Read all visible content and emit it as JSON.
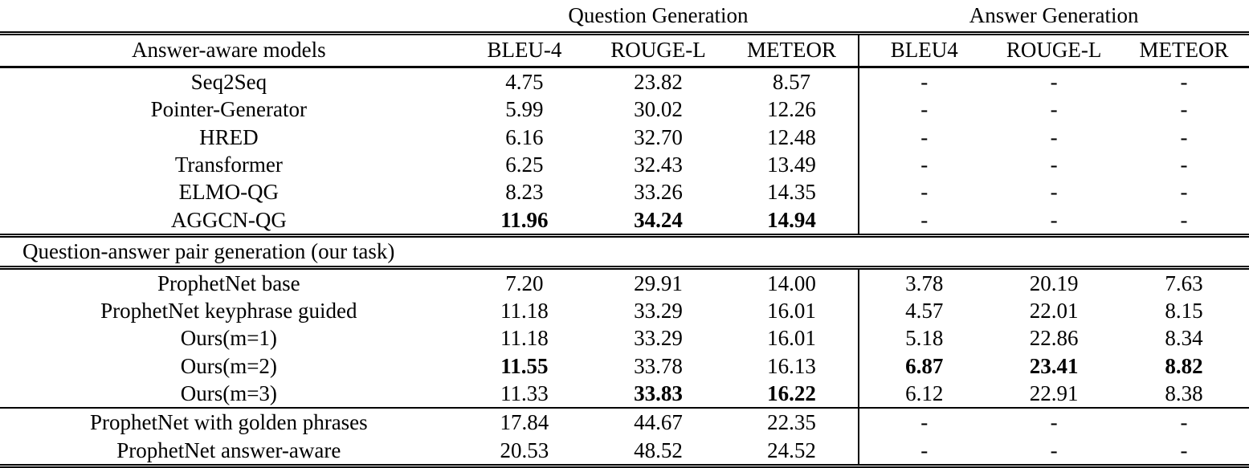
{
  "table": {
    "groups": [
      {
        "label": "Question Generation",
        "span": 3
      },
      {
        "label": "Answer Generation",
        "span": 3
      }
    ],
    "columns": [
      "Answer-aware models",
      "BLEU-4",
      "ROUGE-L",
      "METEOR",
      "BLEU4",
      "ROUGE-L",
      "METEOR"
    ],
    "sections": [
      {
        "title": null,
        "rows": [
          {
            "model": "Seq2Seq",
            "cells": [
              "4.75",
              "23.82",
              "8.57",
              "-",
              "-",
              "-"
            ],
            "bold": []
          },
          {
            "model": "Pointer-Generator",
            "cells": [
              "5.99",
              "30.02",
              "12.26",
              "-",
              "-",
              "-"
            ],
            "bold": []
          },
          {
            "model": "HRED",
            "cells": [
              "6.16",
              "32.70",
              "12.48",
              "-",
              "-",
              "-"
            ],
            "bold": []
          },
          {
            "model": "Transformer",
            "cells": [
              "6.25",
              "32.43",
              "13.49",
              "-",
              "-",
              "-"
            ],
            "bold": []
          },
          {
            "model": "ELMO-QG",
            "cells": [
              "8.23",
              "33.26",
              "14.35",
              "-",
              "-",
              "-"
            ],
            "bold": []
          },
          {
            "model": "AGGCN-QG",
            "cells": [
              "11.96",
              "34.24",
              "14.94",
              "-",
              "-",
              "-"
            ],
            "bold": [
              0,
              1,
              2
            ]
          }
        ]
      },
      {
        "title": "Question-answer pair generation (our task)",
        "rows": [
          {
            "model": "ProphetNet base",
            "cells": [
              "7.20",
              "29.91",
              "14.00",
              "3.78",
              "20.19",
              "7.63"
            ],
            "bold": []
          },
          {
            "model": "ProphetNet keyphrase guided",
            "cells": [
              "11.18",
              "33.29",
              "16.01",
              "4.57",
              "22.01",
              "8.15"
            ],
            "bold": []
          },
          {
            "model": "Ours(m=1)",
            "cells": [
              "11.18",
              "33.29",
              "16.01",
              "5.18",
              "22.86",
              "8.34"
            ],
            "bold": []
          },
          {
            "model": "Ours(m=2)",
            "cells": [
              "11.55",
              "33.78",
              "16.13",
              "6.87",
              "23.41",
              "8.82"
            ],
            "bold": [
              0,
              3,
              4,
              5
            ]
          },
          {
            "model": "Ours(m=3)",
            "cells": [
              "11.33",
              "33.83",
              "16.22",
              "6.12",
              "22.91",
              "8.38"
            ],
            "bold": [
              1,
              2
            ]
          }
        ]
      },
      {
        "title": null,
        "rows": [
          {
            "model": "ProphetNet with golden phrases",
            "cells": [
              "17.84",
              "44.67",
              "22.35",
              "-",
              "-",
              "-"
            ],
            "bold": []
          },
          {
            "model": "ProphetNet answer-aware",
            "cells": [
              "20.53",
              "48.52",
              "24.52",
              "-",
              "-",
              "-"
            ],
            "bold": []
          }
        ]
      }
    ]
  }
}
